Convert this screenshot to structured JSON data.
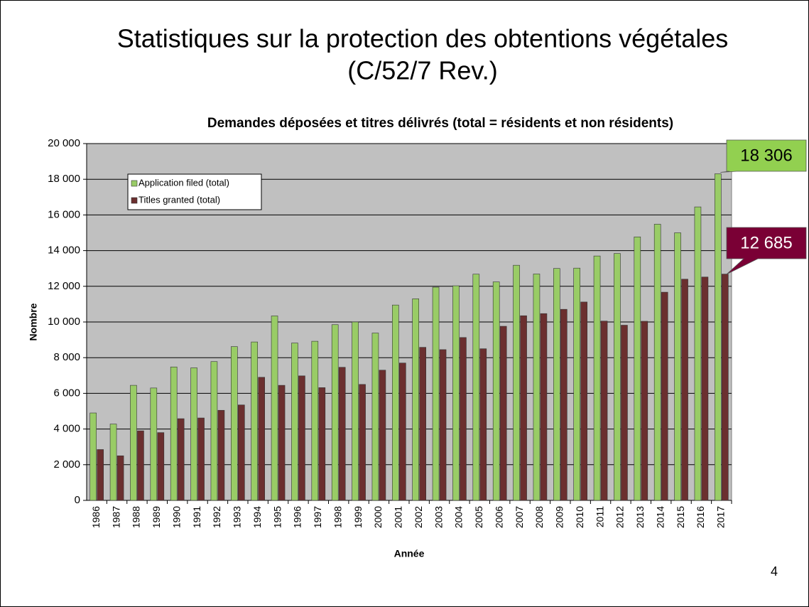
{
  "slide_title": "Statistiques sur la protection des obtentions végétales",
  "slide_subtitle": "(C/52/7 Rev.)",
  "page_number": "4",
  "chart_data": {
    "type": "bar",
    "title": "Demandes déposées et titres délivrés (total = résidents et non résidents)",
    "xlabel": "Année",
    "ylabel": "Nombre",
    "categories": [
      "1986",
      "1987",
      "1988",
      "1989",
      "1990",
      "1991",
      "1992",
      "1993",
      "1994",
      "1995",
      "1996",
      "1997",
      "1998",
      "1999",
      "2000",
      "2001",
      "2002",
      "2003",
      "2004",
      "2005",
      "2006",
      "2007",
      "2008",
      "2009",
      "2010",
      "2011",
      "2012",
      "2013",
      "2014",
      "2015",
      "2016",
      "2017"
    ],
    "series": [
      {
        "name": "Application filed (total)",
        "color": "#99cc66",
        "label_color": "#92d050",
        "label_text_color": "#000000",
        "values": [
          4900,
          4280,
          6450,
          6300,
          7480,
          7430,
          7780,
          8620,
          8880,
          10340,
          8820,
          8920,
          9850,
          10000,
          9380,
          10950,
          11300,
          11950,
          12030,
          12680,
          12250,
          13180,
          12690,
          13000,
          13020,
          13700,
          13840,
          14770,
          15480,
          15000,
          16450,
          18306
        ],
        "value_labels": [
          null,
          null,
          null,
          null,
          null,
          null,
          null,
          null,
          null,
          null,
          null,
          null,
          null,
          null,
          null,
          null,
          null,
          null,
          null,
          null,
          null,
          null,
          null,
          null,
          null,
          null,
          null,
          null,
          null,
          null,
          null,
          "18 306"
        ]
      },
      {
        "name": "Titles granted (total)",
        "color": "#6b2f2f",
        "label_color": "#7a0035",
        "label_text_color": "#ffffff",
        "values": [
          2850,
          2500,
          3900,
          3800,
          4580,
          4620,
          5050,
          5350,
          6900,
          6450,
          6980,
          6320,
          7460,
          6500,
          7300,
          7700,
          8580,
          8450,
          9130,
          8500,
          9760,
          10350,
          10470,
          10710,
          11120,
          10050,
          9820,
          10040,
          11670,
          12400,
          12520,
          12685
        ],
        "value_labels": [
          null,
          null,
          null,
          null,
          null,
          null,
          null,
          null,
          null,
          null,
          null,
          null,
          null,
          null,
          null,
          null,
          null,
          null,
          null,
          null,
          null,
          null,
          null,
          null,
          null,
          null,
          null,
          null,
          null,
          null,
          null,
          "12 685"
        ]
      }
    ],
    "ylim": [
      0,
      20000
    ],
    "yticks": [
      {
        "value": 0,
        "label": "0"
      },
      {
        "value": 2000,
        "label": "2 000"
      },
      {
        "value": 4000,
        "label": "4 000"
      },
      {
        "value": 6000,
        "label": "6 000"
      },
      {
        "value": 8000,
        "label": "8 000"
      },
      {
        "value": 10000,
        "label": "10 000"
      },
      {
        "value": 12000,
        "label": "12 000"
      },
      {
        "value": 14000,
        "label": "14 000"
      },
      {
        "value": 16000,
        "label": "16 000"
      },
      {
        "value": 18000,
        "label": "18 000"
      },
      {
        "value": 20000,
        "label": "20 000"
      }
    ],
    "grid": true,
    "plot_background": "#c0c0c0",
    "legend": "upper left"
  }
}
